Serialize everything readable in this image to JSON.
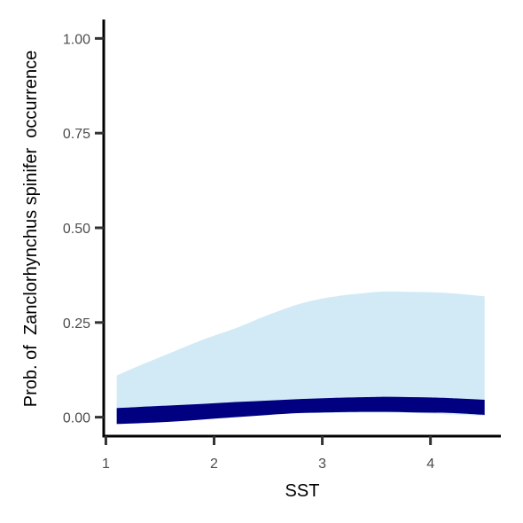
{
  "chart_data": {
    "type": "area",
    "xlabel": "SST",
    "ylabel": "Prob. of  Zanclorhynchus spinifer  occurrence",
    "xlim": [
      0.98,
      4.65
    ],
    "ylim": [
      -0.05,
      1.05
    ],
    "xticks": [
      {
        "value": 1,
        "label": "1"
      },
      {
        "value": 2,
        "label": "2"
      },
      {
        "value": 3,
        "label": "3"
      },
      {
        "value": 4,
        "label": "4"
      }
    ],
    "yticks": [
      {
        "value": 0.0,
        "label": "0.00"
      },
      {
        "value": 0.25,
        "label": "0.25"
      },
      {
        "value": 0.5,
        "label": "0.50"
      },
      {
        "value": 0.75,
        "label": "0.75"
      },
      {
        "value": 1.0,
        "label": "1.00"
      }
    ],
    "x": [
      1.1,
      1.3,
      1.6,
      1.9,
      2.2,
      2.5,
      2.8,
      3.1,
      3.4,
      3.6,
      3.8,
      4.0,
      4.2,
      4.5
    ],
    "series": [
      {
        "role": "outer-interval",
        "lower": [
          0.0,
          0.0,
          0.0,
          0.002,
          0.005,
          0.008,
          0.01,
          0.011,
          0.012,
          0.012,
          0.011,
          0.009,
          0.007,
          0.004
        ],
        "upper": [
          0.11,
          0.135,
          0.17,
          0.205,
          0.235,
          0.27,
          0.3,
          0.318,
          0.328,
          0.332,
          0.331,
          0.33,
          0.327,
          0.319
        ],
        "color": "#d1eaf6"
      },
      {
        "role": "inner-interval",
        "lower": [
          -0.018,
          -0.016,
          -0.012,
          -0.006,
          0.0,
          0.006,
          0.011,
          0.013,
          0.014,
          0.014,
          0.013,
          0.012,
          0.011,
          0.006
        ],
        "upper": [
          0.024,
          0.027,
          0.031,
          0.035,
          0.04,
          0.044,
          0.048,
          0.051,
          0.053,
          0.054,
          0.053,
          0.052,
          0.05,
          0.046
        ],
        "color": "#000080"
      }
    ],
    "grid": false,
    "legend": "none"
  }
}
